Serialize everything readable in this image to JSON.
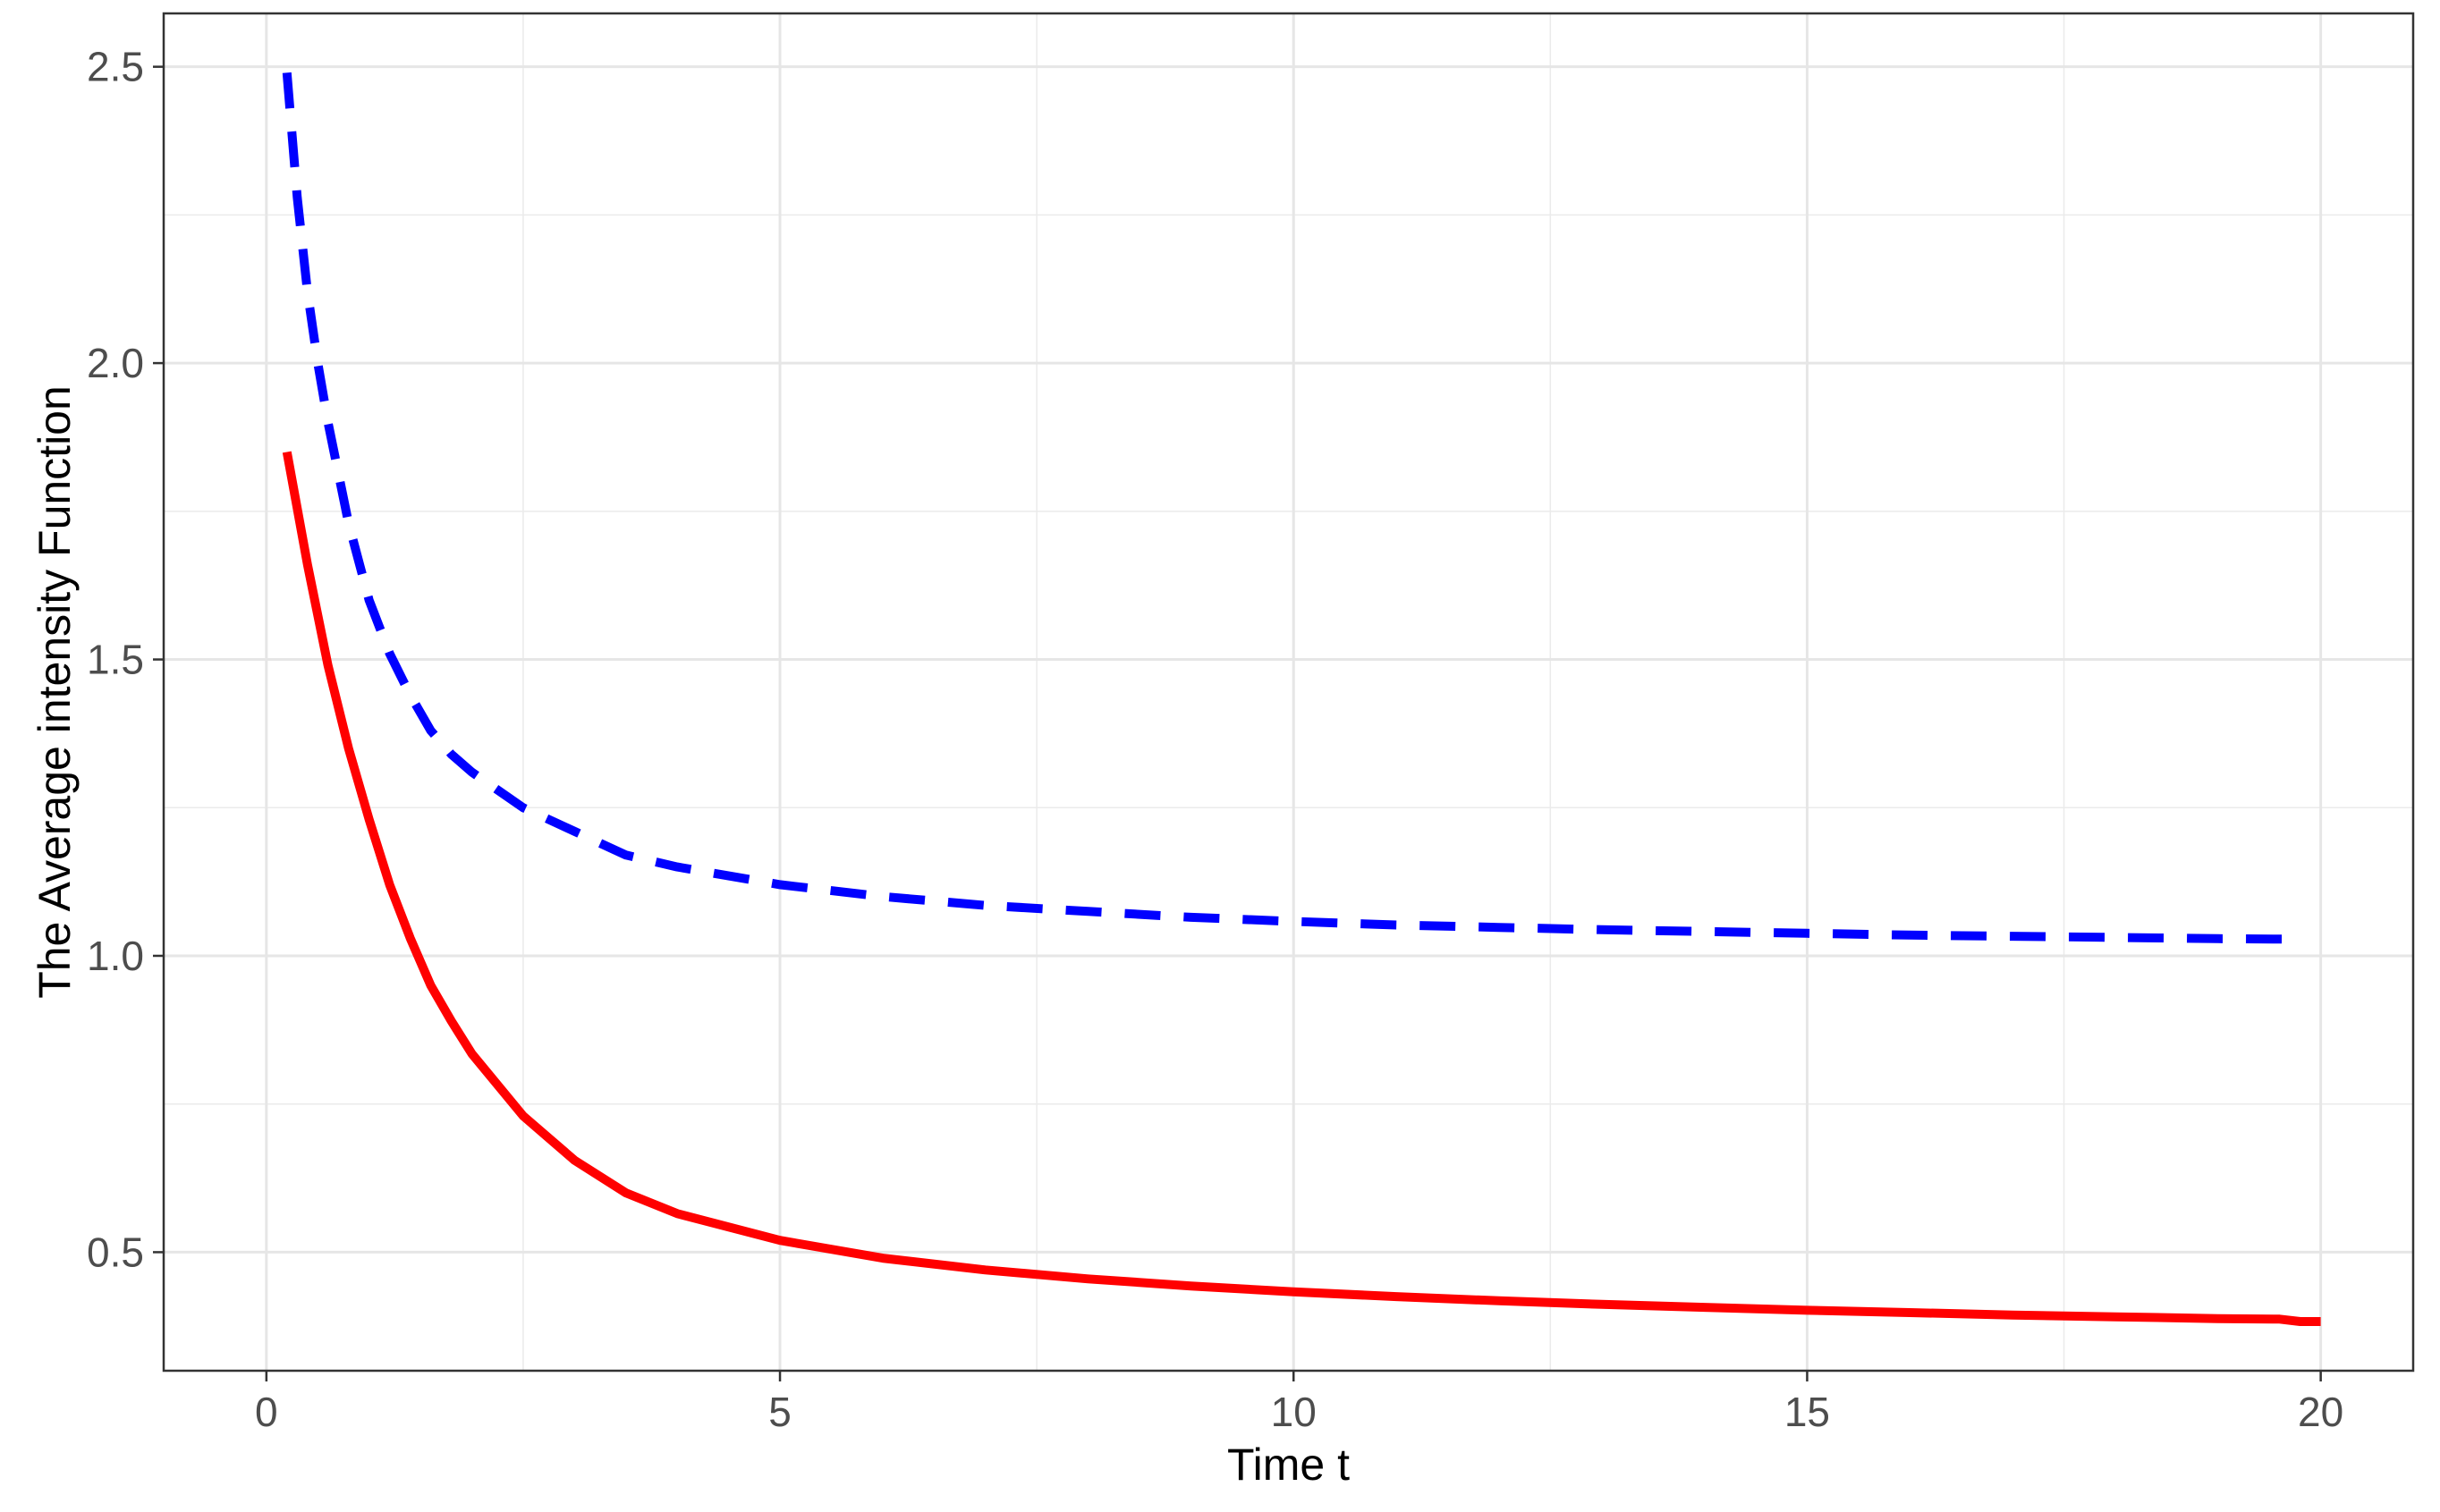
{
  "chart_data": {
    "type": "line",
    "title": "",
    "xlabel": "Time t",
    "ylabel": "The Average intensity Function",
    "xlim": [
      -1,
      20.9
    ],
    "ylim": [
      0.3,
      2.59
    ],
    "xticks": [
      0,
      5,
      10,
      15,
      20
    ],
    "xtick_labels": [
      "0",
      "5",
      "10",
      "15",
      "20"
    ],
    "yticks": [
      0.5,
      1.0,
      1.5,
      2.0,
      2.5
    ],
    "ytick_labels": [
      "0.5",
      "1.0",
      "1.5",
      "2.0",
      "2.5"
    ],
    "grid": true,
    "legend": "none",
    "series": [
      {
        "color": "#0000ff",
        "style": "dashed",
        "x": [
          0.2,
          0.3,
          0.4,
          0.5,
          0.6,
          0.8,
          1.0,
          1.2,
          1.4,
          1.6,
          1.8,
          2.0,
          2.5,
          3.0,
          3.5,
          4.0,
          5.0,
          6.0,
          7.0,
          8.0,
          9.0,
          10.0,
          11.0,
          12.0,
          13.0,
          14.0,
          15.0,
          16.0,
          17.0,
          18.0,
          19.0,
          19.8
        ],
        "y": [
          2.49,
          2.28,
          2.12,
          2.0,
          1.9,
          1.73,
          1.6,
          1.51,
          1.44,
          1.38,
          1.34,
          1.31,
          1.25,
          1.21,
          1.17,
          1.15,
          1.12,
          1.1,
          1.085,
          1.075,
          1.065,
          1.058,
          1.052,
          1.048,
          1.044,
          1.041,
          1.038,
          1.035,
          1.033,
          1.031,
          1.029,
          1.028
        ]
      },
      {
        "color": "#ff0000",
        "style": "solid",
        "x": [
          0.2,
          0.4,
          0.6,
          0.8,
          1.0,
          1.2,
          1.4,
          1.6,
          1.8,
          2.0,
          2.5,
          3.0,
          3.5,
          4.0,
          5.0,
          6.0,
          7.0,
          8.0,
          9.0,
          10.0,
          11.0,
          12.0,
          13.0,
          14.0,
          15.0,
          16.0,
          17.0,
          18.0,
          19.0,
          19.6,
          19.8,
          20.0
        ],
        "y": [
          1.85,
          1.66,
          1.49,
          1.35,
          1.23,
          1.12,
          1.03,
          0.95,
          0.89,
          0.835,
          0.73,
          0.655,
          0.6,
          0.565,
          0.52,
          0.49,
          0.47,
          0.455,
          0.443,
          0.433,
          0.425,
          0.418,
          0.412,
          0.407,
          0.402,
          0.398,
          0.394,
          0.391,
          0.388,
          0.387,
          0.383,
          0.383
        ]
      }
    ]
  }
}
